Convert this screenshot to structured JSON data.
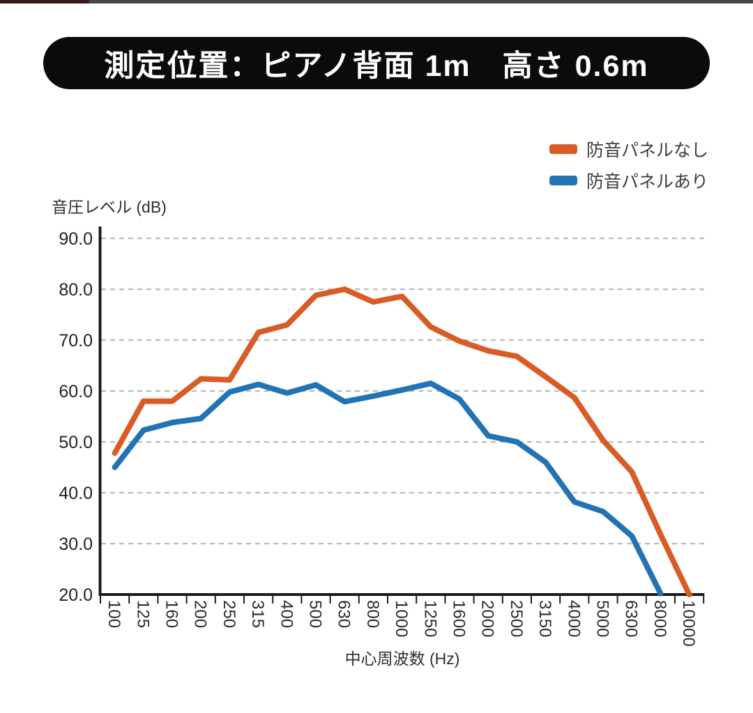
{
  "top_strip": {
    "left_color": "#3a1a17",
    "right_color": "#474746"
  },
  "title": {
    "text": "測定位置：ピアノ背面 1m　高さ 0.6m"
  },
  "legend": [
    {
      "label": "防音パネルなし",
      "color": "#d95b26"
    },
    {
      "label": "防音パネルあり",
      "color": "#2373b4"
    }
  ],
  "chart_data": {
    "type": "line",
    "title": "測定位置：ピアノ背面 1m　高さ 0.6m",
    "xlabel": "中心周波数 (Hz)",
    "ylabel": "音圧レベル (dB)",
    "categories": [
      "100",
      "125",
      "160",
      "200",
      "250",
      "315",
      "400",
      "500",
      "630",
      "800",
      "1000",
      "1250",
      "1600",
      "2000",
      "2500",
      "3150",
      "4000",
      "5000",
      "6300",
      "8000",
      "10000"
    ],
    "series": [
      {
        "name": "防音パネルなし",
        "color": "#d95b26",
        "values": [
          47.8,
          58.0,
          58.0,
          62.4,
          62.2,
          71.5,
          73.0,
          78.8,
          80.0,
          77.5,
          78.6,
          72.6,
          69.8,
          67.9,
          66.8,
          62.8,
          58.7,
          50.3,
          44.1,
          31.8,
          20.0
        ]
      },
      {
        "name": "防音パネルあり",
        "color": "#2373b4",
        "values": [
          45.0,
          52.3,
          53.8,
          54.6,
          59.8,
          61.3,
          59.6,
          61.2,
          57.9,
          59.0,
          60.2,
          61.5,
          58.4,
          51.2,
          50.0,
          46.0,
          38.2,
          36.3,
          31.5,
          20.2,
          null
        ]
      }
    ],
    "ylim": [
      20,
      90
    ],
    "ytick_step": 10,
    "ytick_label_format": "one_decimal",
    "grid": "horizontal-dashed",
    "legend_position": "top-right",
    "x_tick_label_rotation_deg": 90
  }
}
